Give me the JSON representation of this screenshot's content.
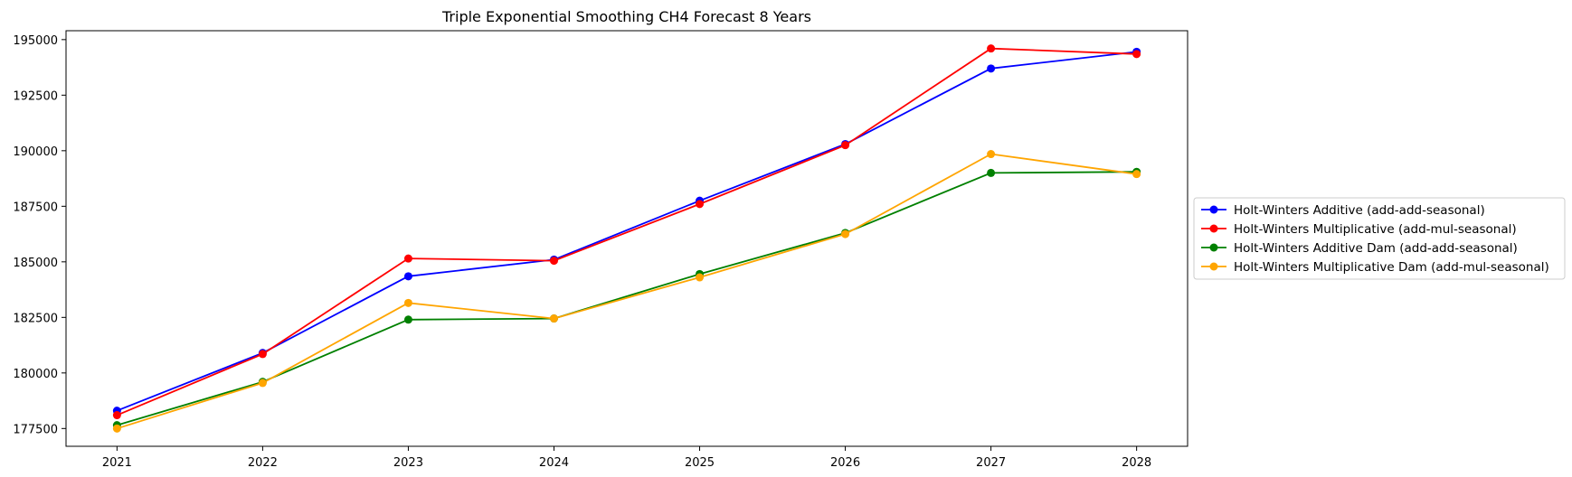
{
  "chart_data": {
    "type": "line",
    "title": "Triple Exponential Smoothing CH4 Forecast 8 Years",
    "xlabel": "",
    "ylabel": "",
    "x": [
      "2021",
      "2022",
      "2023",
      "2024",
      "2025",
      "2026",
      "2027",
      "2028"
    ],
    "xlim": [
      2020.65,
      2028.35
    ],
    "ylim": [
      176700,
      195400
    ],
    "yticks": [
      177500,
      180000,
      182500,
      185000,
      187500,
      190000,
      192500,
      195000
    ],
    "ytick_labels": [
      "177500",
      "180000",
      "182500",
      "185000",
      "187500",
      "190000",
      "192500",
      "195000"
    ],
    "grid": false,
    "legend_position": "center-right-outside",
    "series": [
      {
        "name": "Holt-Winters Additive (add-add-seasonal)",
        "color": "#0000ff",
        "marker": "circle",
        "values": [
          178300,
          180900,
          184350,
          185100,
          187750,
          190300,
          193700,
          194450
        ]
      },
      {
        "name": "Holt-Winters Multiplicative (add-mul-seasonal)",
        "color": "#ff0000",
        "marker": "circle",
        "values": [
          178100,
          180850,
          185150,
          185050,
          187600,
          190250,
          194600,
          194350
        ]
      },
      {
        "name": "Holt-Winters Additive Dam (add-add-seasonal)",
        "color": "#008000",
        "marker": "circle",
        "values": [
          177650,
          179600,
          182400,
          182450,
          184450,
          186300,
          189000,
          189050
        ]
      },
      {
        "name": "Holt-Winters Multiplicative Dam (add-mul-seasonal)",
        "color": "#ffa500",
        "marker": "circle",
        "values": [
          177500,
          179550,
          183150,
          182450,
          184300,
          186250,
          189850,
          188950
        ]
      }
    ]
  }
}
